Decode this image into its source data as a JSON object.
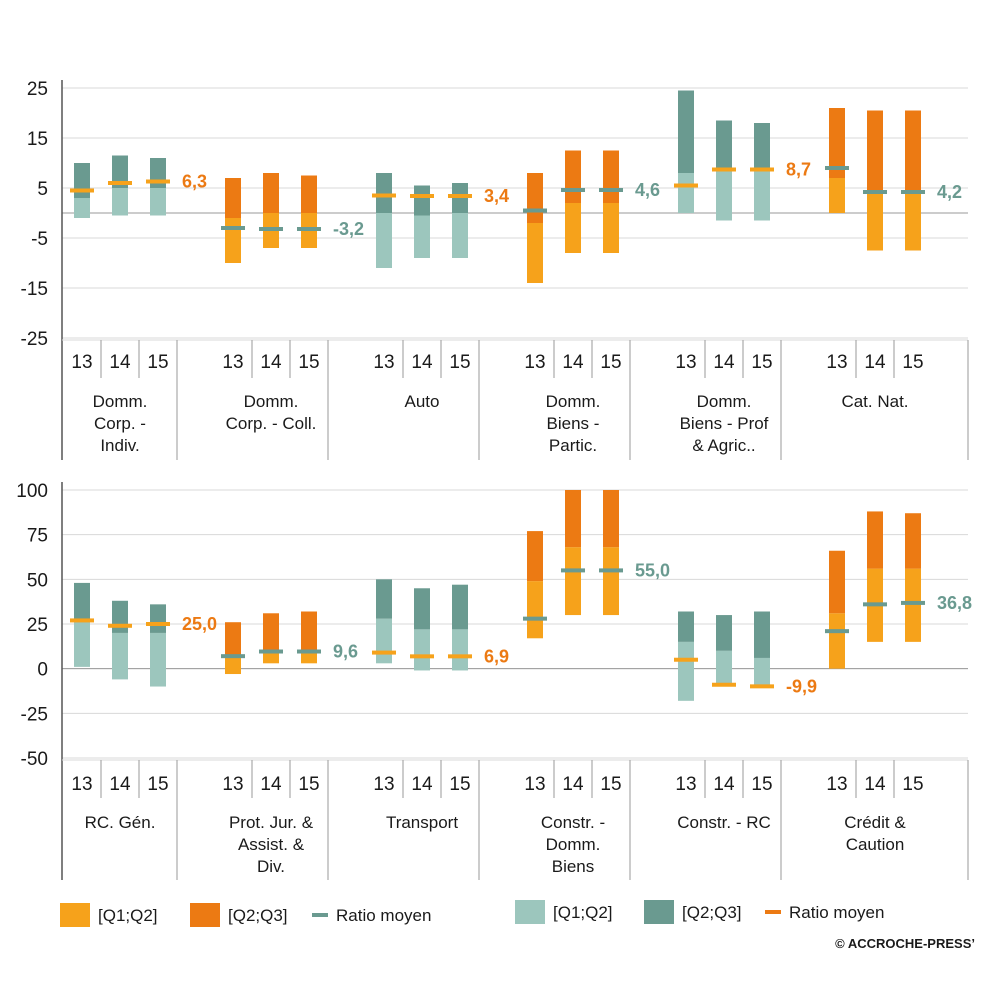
{
  "colors": {
    "orange_q1q2": "#f6a21b",
    "orange_q2q3": "#ec7a13",
    "teal_q1q2": "#9cc6bd",
    "teal_q2q3": "#6a9a90",
    "orange_text": "#ec7a13",
    "teal_text": "#6a9a90",
    "grid": "#d8d8d8"
  },
  "chart_data": [
    {
      "type": "bar",
      "ylim": [
        -25,
        25
      ],
      "yticks": [
        "25",
        "15",
        "5",
        "-5",
        "-15",
        "-25"
      ],
      "ytick_values": [
        25,
        15,
        5,
        -5,
        -15,
        -25
      ],
      "years": [
        "13",
        "14",
        "15"
      ],
      "groups": [
        {
          "label": [
            "Domm.",
            "Corp. -",
            "Indiv."
          ],
          "color": "teal",
          "bars": [
            {
              "q1": -1,
              "q2": 3,
              "q3": 10,
              "mean": 4.5
            },
            {
              "q1": -0.5,
              "q2": 5,
              "q3": 11.5,
              "mean": 6
            },
            {
              "q1": -0.5,
              "q2": 5,
              "q3": 11,
              "mean": 6.3
            }
          ],
          "value_label": "6,3",
          "value_color": "orange"
        },
        {
          "label": [
            "Domm.",
            "Corp. - Coll."
          ],
          "color": "orange",
          "bars": [
            {
              "q1": -10,
              "q2": -1,
              "q3": 7,
              "mean": -3
            },
            {
              "q1": -7,
              "q2": 0,
              "q3": 8,
              "mean": -3.2
            },
            {
              "q1": -7,
              "q2": 0,
              "q3": 7.5,
              "mean": -3.2
            }
          ],
          "value_label": "-3,2",
          "value_color": "teal"
        },
        {
          "label": [
            "Auto"
          ],
          "color": "teal",
          "bars": [
            {
              "q1": -11,
              "q2": 0,
              "q3": 8,
              "mean": 3.5
            },
            {
              "q1": -9,
              "q2": -0.5,
              "q3": 5.5,
              "mean": 3.4
            },
            {
              "q1": -9,
              "q2": 0,
              "q3": 6,
              "mean": 3.4
            }
          ],
          "value_label": "3,4",
          "value_color": "orange"
        },
        {
          "label": [
            "Domm.",
            "Biens -",
            "Partic."
          ],
          "color": "orange",
          "bars": [
            {
              "q1": -14,
              "q2": -2,
              "q3": 8,
              "mean": 0.5
            },
            {
              "q1": -8,
              "q2": 2,
              "q3": 12.5,
              "mean": 4.6
            },
            {
              "q1": -8,
              "q2": 2,
              "q3": 12.5,
              "mean": 4.6
            }
          ],
          "value_label": "4,6",
          "value_color": "teal"
        },
        {
          "label": [
            "Domm.",
            "Biens - Prof",
            "& Agric.."
          ],
          "color": "teal",
          "bars": [
            {
              "q1": 0,
              "q2": 8,
              "q3": 24.5,
              "mean": 5.5
            },
            {
              "q1": -1.5,
              "q2": 9,
              "q3": 18.5,
              "mean": 8.7
            },
            {
              "q1": -1.5,
              "q2": 9,
              "q3": 18,
              "mean": 8.7
            }
          ],
          "value_label": "8,7",
          "value_color": "orange"
        },
        {
          "label": [
            "Cat. Nat."
          ],
          "color": "orange",
          "bars": [
            {
              "q1": 0,
              "q2": 7,
              "q3": 21,
              "mean": 9
            },
            {
              "q1": -7.5,
              "q2": 4,
              "q3": 20.5,
              "mean": 4.2
            },
            {
              "q1": -7.5,
              "q2": 4,
              "q3": 20.5,
              "mean": 4.2
            }
          ],
          "value_label": "4,2",
          "value_color": "teal"
        }
      ]
    },
    {
      "type": "bar",
      "ylim": [
        -50,
        100
      ],
      "yticks": [
        "100",
        "75",
        "50",
        "25",
        "0",
        "-25",
        "-50"
      ],
      "ytick_values": [
        100,
        75,
        50,
        25,
        0,
        -25,
        -50
      ],
      "years": [
        "13",
        "14",
        "15"
      ],
      "groups": [
        {
          "label": [
            "RC. Gén."
          ],
          "color": "teal",
          "bars": [
            {
              "q1": 1,
              "q2": 27,
              "q3": 48,
              "mean": 27
            },
            {
              "q1": -6,
              "q2": 20,
              "q3": 38,
              "mean": 24
            },
            {
              "q1": -10,
              "q2": 20,
              "q3": 36,
              "mean": 25
            }
          ],
          "value_label": "25,0",
          "value_color": "orange"
        },
        {
          "label": [
            "Prot. Jur. &",
            "Assist. &",
            "Div."
          ],
          "color": "orange",
          "bars": [
            {
              "q1": -3,
              "q2": 7,
              "q3": 26,
              "mean": 7
            },
            {
              "q1": 3,
              "q2": 9,
              "q3": 31,
              "mean": 9.6
            },
            {
              "q1": 3,
              "q2": 10,
              "q3": 32,
              "mean": 9.6
            }
          ],
          "value_label": "9,6",
          "value_color": "teal"
        },
        {
          "label": [
            "Transport"
          ],
          "color": "teal",
          "bars": [
            {
              "q1": 3,
              "q2": 28,
              "q3": 50,
              "mean": 9
            },
            {
              "q1": -1,
              "q2": 22,
              "q3": 45,
              "mean": 6.9
            },
            {
              "q1": -1,
              "q2": 22,
              "q3": 47,
              "mean": 6.9
            }
          ],
          "value_label": "6,9",
          "value_color": "orange"
        },
        {
          "label": [
            "Constr. -",
            "Domm.",
            "Biens"
          ],
          "color": "orange",
          "bars": [
            {
              "q1": 17,
              "q2": 49,
              "q3": 77,
              "mean": 28
            },
            {
              "q1": 30,
              "q2": 68,
              "q3": 100,
              "mean": 55
            },
            {
              "q1": 30,
              "q2": 68,
              "q3": 100,
              "mean": 55
            }
          ],
          "value_label": "55,0",
          "value_color": "teal"
        },
        {
          "label": [
            "Constr. - RC"
          ],
          "color": "teal",
          "bars": [
            {
              "q1": -18,
              "q2": 15,
              "q3": 32,
              "mean": 5
            },
            {
              "q1": -9,
              "q2": 10,
              "q3": 30,
              "mean": -9
            },
            {
              "q1": -10,
              "q2": 6,
              "q3": 32,
              "mean": -9.9
            }
          ],
          "value_label": "-9,9",
          "value_color": "orange"
        },
        {
          "label": [
            "Crédit &",
            "Caution"
          ],
          "color": "orange",
          "bars": [
            {
              "q1": 0,
              "q2": 31,
              "q3": 66,
              "mean": 21
            },
            {
              "q1": 15,
              "q2": 56,
              "q3": 88,
              "mean": 36
            },
            {
              "q1": 15,
              "q2": 56,
              "q3": 87,
              "mean": 36.8
            }
          ],
          "value_label": "36,8",
          "value_color": "teal"
        }
      ]
    }
  ],
  "legend": [
    {
      "label": "[Q1;Q2]",
      "kind": "box",
      "color": "orange_q1q2"
    },
    {
      "label": "[Q2;Q3]",
      "kind": "box",
      "color": "orange_q2q3"
    },
    {
      "label": "Ratio moyen",
      "kind": "line",
      "color": "teal_q2q3"
    },
    {
      "label": "[Q1;Q2]",
      "kind": "box",
      "color": "teal_q1q2"
    },
    {
      "label": "[Q2;Q3]",
      "kind": "box",
      "color": "teal_q2q3"
    },
    {
      "label": "Ratio moyen",
      "kind": "line",
      "color": "orange_q2q3"
    }
  ],
  "copyright": "© ACCROCHE-PRESS’"
}
